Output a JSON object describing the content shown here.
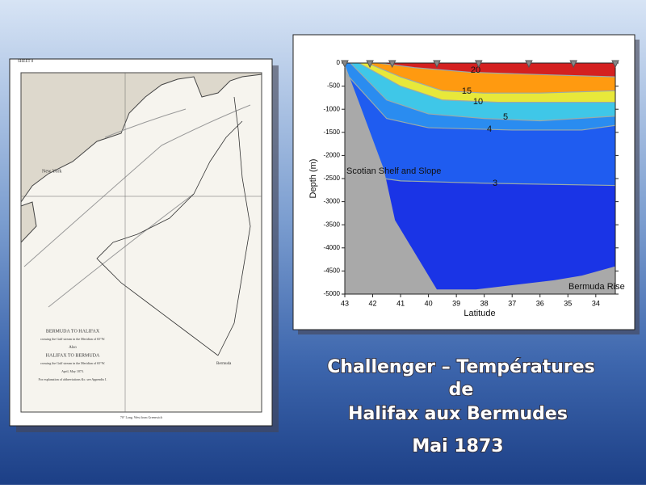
{
  "slide": {
    "title_lines": [
      "Challenger – Températures",
      "de",
      "Halifax aux Bermudes"
    ],
    "date": "Mai 1873"
  },
  "map": {
    "sheet": "SHEET 8",
    "title_1": "BERMUDA TO HALIFAX",
    "subtitle_1": "crossing the Gulf stream in the Meridian of 65°W.",
    "also": "Also",
    "title_2": "HALIFAX TO BERMUDA",
    "subtitle_2": "crossing the Gulf stream in the Meridian of 65°W.",
    "date": "April, May 1873.",
    "note": "For explanation of abbreviations &c. see Appendix I.",
    "new_york": "New York",
    "bermuda": "Bermuda",
    "footer": "70° Long. West from Greenwich"
  },
  "chart_data": {
    "type": "contour",
    "xlabel": "Latitude",
    "ylabel": "Depth (m)",
    "xlim": [
      43,
      33.3
    ],
    "ylim": [
      0,
      -5000
    ],
    "xticks": [
      43,
      42,
      41,
      40,
      39,
      38,
      37,
      36,
      35,
      34
    ],
    "yticks": [
      0,
      -500,
      -1000,
      -1500,
      -2000,
      -2500,
      -3000,
      -3500,
      -4000,
      -4500,
      -5000
    ],
    "contour_levels": [
      20,
      15,
      10,
      5,
      4,
      3
    ],
    "stations": [
      43,
      42.1,
      41.3,
      39.7,
      38.2,
      36.4,
      34.8,
      33.3
    ],
    "annotations": [
      "Scotian Shelf and Slope",
      "Bermuda Rise"
    ]
  }
}
